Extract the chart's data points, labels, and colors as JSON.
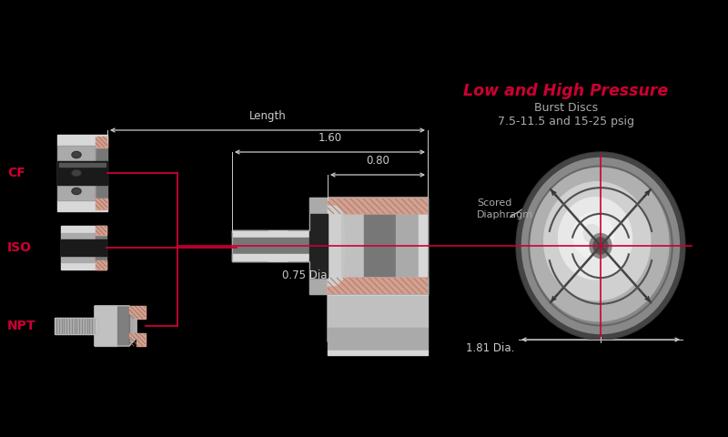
{
  "bg_color": "#000000",
  "title_text": "Low and High Pressure",
  "title_color": "#cc0033",
  "subtitle1": "Burst Discs",
  "subtitle2": "7.5-11.5 and 15-25 psig",
  "subtitle_color": "#aaaaaa",
  "dim_color": "#cccccc",
  "label_cf": "CF",
  "label_iso": "ISO",
  "label_npt": "NPT",
  "label_color": "#cc0033",
  "dim_length": "Length",
  "dim_160": "1.60",
  "dim_080": "0.80",
  "dim_075": "0.75 Dia.",
  "dim_181": "1.81 Dia.",
  "scored_label": "Scored\nDiaphragm",
  "red_line": "#cc0033",
  "crosshair": "#cc0033",
  "copper": "#d4a090",
  "steel_bright": "#d8d8d8",
  "steel_mid": "#aaaaaa",
  "steel_dark": "#777777",
  "steel_darker": "#555555"
}
